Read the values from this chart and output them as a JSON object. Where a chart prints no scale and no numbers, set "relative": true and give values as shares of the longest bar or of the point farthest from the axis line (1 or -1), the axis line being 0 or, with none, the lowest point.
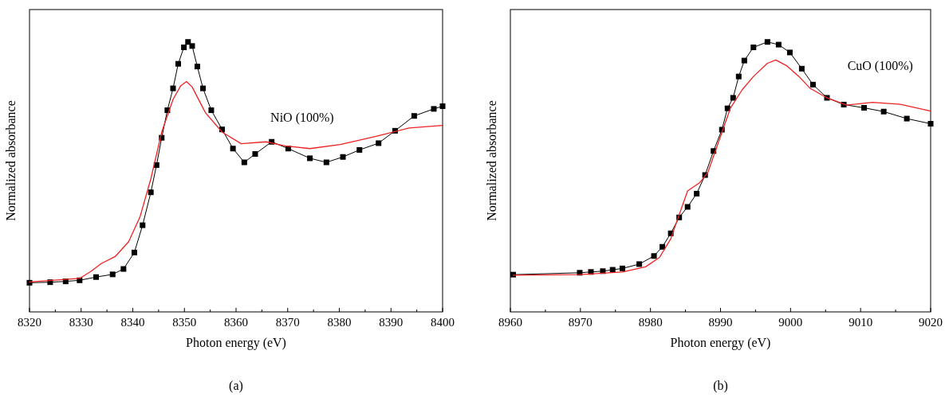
{
  "chart_data": [
    {
      "type": "line",
      "relative": true,
      "xlabel": "Photon energy (eV)",
      "ylabel": "Normalized absorbance",
      "xlim": [
        8320,
        8400
      ],
      "xticks": [
        8320,
        {
          "value": 8325,
          "label": null
        },
        8330,
        {
          "value": 8335,
          "label": null
        },
        8340,
        {
          "value": 8345,
          "label": null
        },
        8350,
        {
          "value": 8355,
          "label": null
        },
        8360,
        {
          "value": 8365,
          "label": null
        },
        8370,
        {
          "value": 8375,
          "label": null
        },
        8380,
        {
          "value": 8385,
          "label": null
        },
        8390,
        {
          "value": 8395,
          "label": null
        },
        8400
      ],
      "annotations": [
        "NiO (100%)",
        "(a)"
      ],
      "series": [
        {
          "color": "#000000",
          "marker": "square",
          "line_style": "solid",
          "x": [
            8320,
            8324,
            8327,
            8329.7,
            8332.9,
            8336.1,
            8338.2,
            8340.3,
            8341.9,
            8343.5,
            8344.6,
            8345.6,
            8346.7,
            8347.8,
            8348.8,
            8349.9,
            8350.7,
            8351.5,
            8352.5,
            8353.6,
            8355.2,
            8357.3,
            8359.4,
            8361.6,
            8363.7,
            8366.9,
            8370.1,
            8374.3,
            8377.5,
            8380.7,
            8383.9,
            8387.6,
            8390.8,
            8394.5,
            8398.3,
            8400
          ],
          "values": [
            0.108,
            0.11,
            0.113,
            0.117,
            0.129,
            0.139,
            0.159,
            0.22,
            0.321,
            0.443,
            0.544,
            0.645,
            0.747,
            0.828,
            0.919,
            0.98,
            1.0,
            0.985,
            0.909,
            0.828,
            0.747,
            0.676,
            0.605,
            0.554,
            0.585,
            0.63,
            0.605,
            0.569,
            0.554,
            0.574,
            0.6,
            0.625,
            0.671,
            0.726,
            0.752,
            0.762
          ]
        },
        {
          "color": "#ee2222",
          "marker": "none",
          "line_style": "solid",
          "x": [
            8320,
            8329.7,
            8331.8,
            8333.9,
            8336.6,
            8339.2,
            8341.4,
            8343.5,
            8345.6,
            8347.8,
            8349.3,
            8350.4,
            8351.5,
            8354.1,
            8357.3,
            8361,
            8365.8,
            8369.5,
            8374.3,
            8380.2,
            8387.1,
            8393.5,
            8400
          ],
          "values": [
            0.111,
            0.124,
            0.149,
            0.179,
            0.205,
            0.26,
            0.352,
            0.493,
            0.666,
            0.787,
            0.838,
            0.853,
            0.833,
            0.737,
            0.666,
            0.623,
            0.63,
            0.615,
            0.605,
            0.62,
            0.65,
            0.681,
            0.691
          ]
        }
      ]
    },
    {
      "type": "line",
      "relative": true,
      "xlabel": "Photon energy (eV)",
      "ylabel": "Normalized absorbance",
      "xlim": [
        8960,
        9020
      ],
      "xticks": [
        8960,
        {
          "value": 8965,
          "label": null
        },
        8970,
        {
          "value": 8975,
          "label": null
        },
        8980,
        {
          "value": 8985,
          "label": null
        },
        8990,
        {
          "value": 8995,
          "label": null
        },
        9000,
        {
          "value": 9005,
          "label": null
        },
        9010,
        {
          "value": 9015,
          "label": null
        },
        9020
      ],
      "annotations": [
        "CuO (100%)",
        "(b)"
      ],
      "series": [
        {
          "color": "#000000",
          "marker": "square",
          "line_style": "solid",
          "x": [
            8960.4,
            8969.9,
            8971.5,
            8973.2,
            8974.6,
            8976,
            8978.4,
            8980.5,
            8981.7,
            8982.9,
            8984.1,
            8985.3,
            8986.6,
            8987.8,
            8989,
            8990.2,
            8991,
            8991.8,
            8992.6,
            8993.4,
            8994.7,
            8996.7,
            8998.3,
            8999.9,
            9001.6,
            9003.2,
            9005.2,
            9007.6,
            9010.5,
            9013.3,
            9016.6,
            9020
          ],
          "values": [
            0.138,
            0.145,
            0.148,
            0.151,
            0.156,
            0.161,
            0.177,
            0.207,
            0.241,
            0.291,
            0.35,
            0.389,
            0.438,
            0.507,
            0.596,
            0.675,
            0.754,
            0.793,
            0.872,
            0.931,
            0.98,
            1.0,
            0.99,
            0.961,
            0.901,
            0.842,
            0.793,
            0.768,
            0.756,
            0.742,
            0.716,
            0.697
          ]
        },
        {
          "color": "#ee2222",
          "marker": "none",
          "line_style": "solid",
          "x": [
            8960.4,
            8969.9,
            8976,
            8979.3,
            8981.3,
            8982.9,
            8984.1,
            8985.3,
            8987,
            8988.2,
            8989.8,
            8991.4,
            8993.1,
            8994.7,
            8996.7,
            8997.9,
            8999.5,
            9001.2,
            9002.8,
            9005.2,
            9008,
            9011.7,
            9015.7,
            9020
          ],
          "values": [
            0.136,
            0.138,
            0.148,
            0.167,
            0.202,
            0.271,
            0.36,
            0.448,
            0.478,
            0.517,
            0.635,
            0.754,
            0.823,
            0.872,
            0.921,
            0.933,
            0.911,
            0.872,
            0.828,
            0.793,
            0.766,
            0.776,
            0.769,
            0.744
          ]
        }
      ]
    }
  ]
}
